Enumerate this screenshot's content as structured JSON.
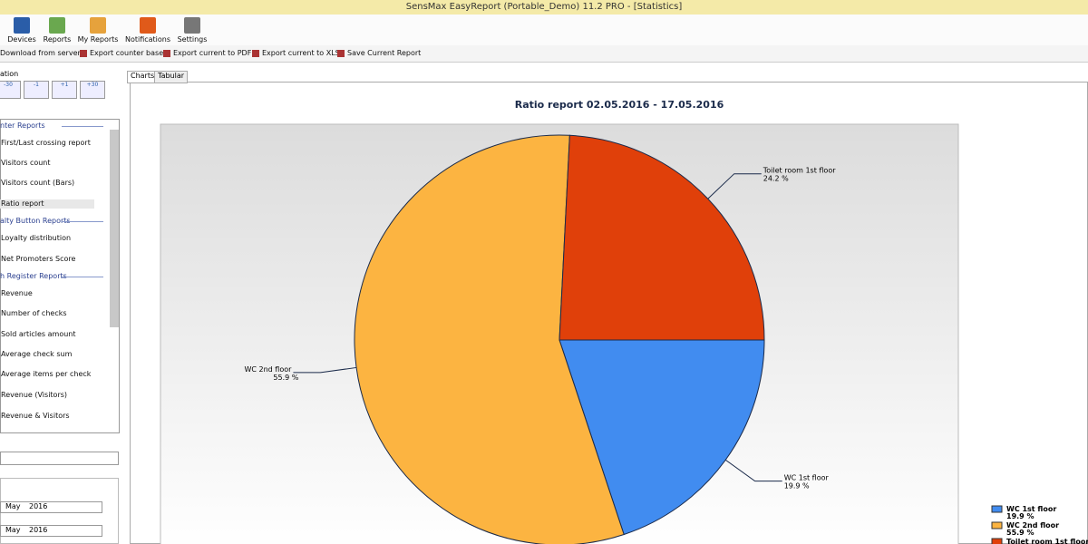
{
  "window": {
    "title": "SensMax EasyReport (Portable_Demo) 11.2 PRO - [Statistics]"
  },
  "toolbar": [
    "Devices",
    "Reports",
    "My Reports",
    "Notifications",
    "Settings"
  ],
  "actions": [
    "Download from server",
    "Export counter base",
    "Export current to PDF",
    "Export current to XLS",
    "Save Current Report"
  ],
  "navigation": {
    "label": "ation",
    "buttons": [
      "-30",
      "-1",
      "+1",
      "+30"
    ]
  },
  "sidebar": [
    {
      "title": "nter Reports",
      "items": [
        "First/Last crossing report",
        "Visitors count",
        "Visitors count (Bars)",
        "Ratio report"
      ]
    },
    {
      "title": "alty Button Reports",
      "items": [
        "Loyalty distribution",
        "Net Promoters Score"
      ]
    },
    {
      "title": "h Register Reports",
      "items": [
        "Revenue",
        "Number of checks",
        "Sold articles amount",
        "Average check sum",
        "Average items per check",
        "Revenue (Visitors)",
        "Revenue & Visitors"
      ]
    }
  ],
  "dates": [
    [
      "May",
      "2016"
    ],
    [
      "May",
      "2016"
    ]
  ],
  "tabs": [
    "Charts",
    "Tabular"
  ],
  "chart_data": {
    "type": "pie",
    "title": "Ratio report 02.05.2016 - 17.05.2016",
    "categories": [
      "WC 1st floor",
      "WC 2nd floor",
      "Toilet room 1st floor"
    ],
    "values": [
      19.9,
      55.9,
      24.2
    ],
    "value_labels": [
      "19.9 %",
      "55.9 %",
      "24.2 %"
    ],
    "colors": [
      "#418cf0",
      "#fcb441",
      "#e0400a"
    ],
    "legend": "bottom-right"
  }
}
